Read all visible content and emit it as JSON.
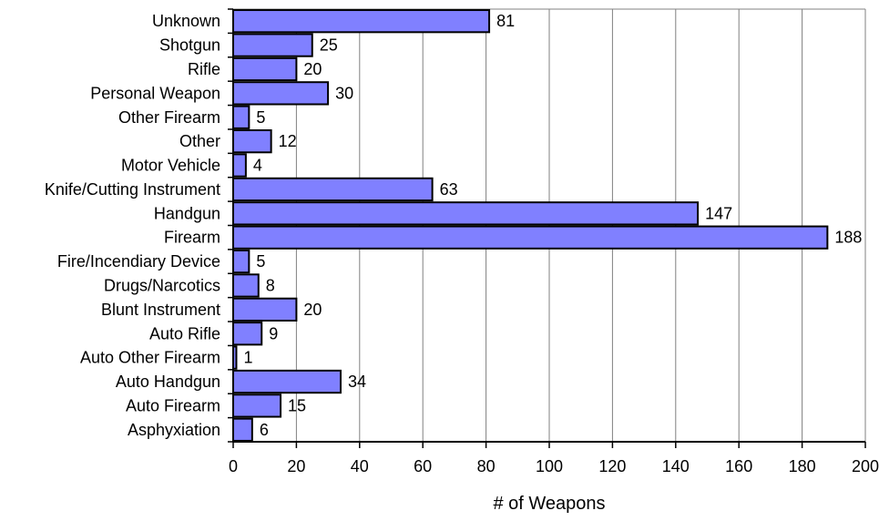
{
  "chart_data": {
    "type": "bar",
    "orientation": "horizontal",
    "title": "",
    "xlabel": "# of Weapons",
    "ylabel": "",
    "xlim": [
      0,
      200
    ],
    "xticks": [
      0,
      20,
      40,
      60,
      80,
      100,
      120,
      140,
      160,
      180,
      200
    ],
    "grid": "vertical",
    "legend": "none",
    "bar_color": "#8080ff",
    "bar_edge_color": "#000000",
    "grid_color": "#808080",
    "categories": [
      "Unknown",
      "Shotgun",
      "Rifle",
      "Personal Weapon",
      "Other Firearm",
      "Other",
      "Motor Vehicle",
      "Knife/Cutting Instrument",
      "Handgun",
      "Firearm",
      "Fire/Incendiary Device",
      "Drugs/Narcotics",
      "Blunt Instrument",
      "Auto Rifle",
      "Auto Other Firearm",
      "Auto Handgun",
      "Auto Firearm",
      "Asphyxiation"
    ],
    "values": [
      81,
      25,
      20,
      30,
      5,
      12,
      4,
      63,
      147,
      188,
      5,
      8,
      20,
      9,
      1,
      34,
      15,
      6
    ]
  }
}
